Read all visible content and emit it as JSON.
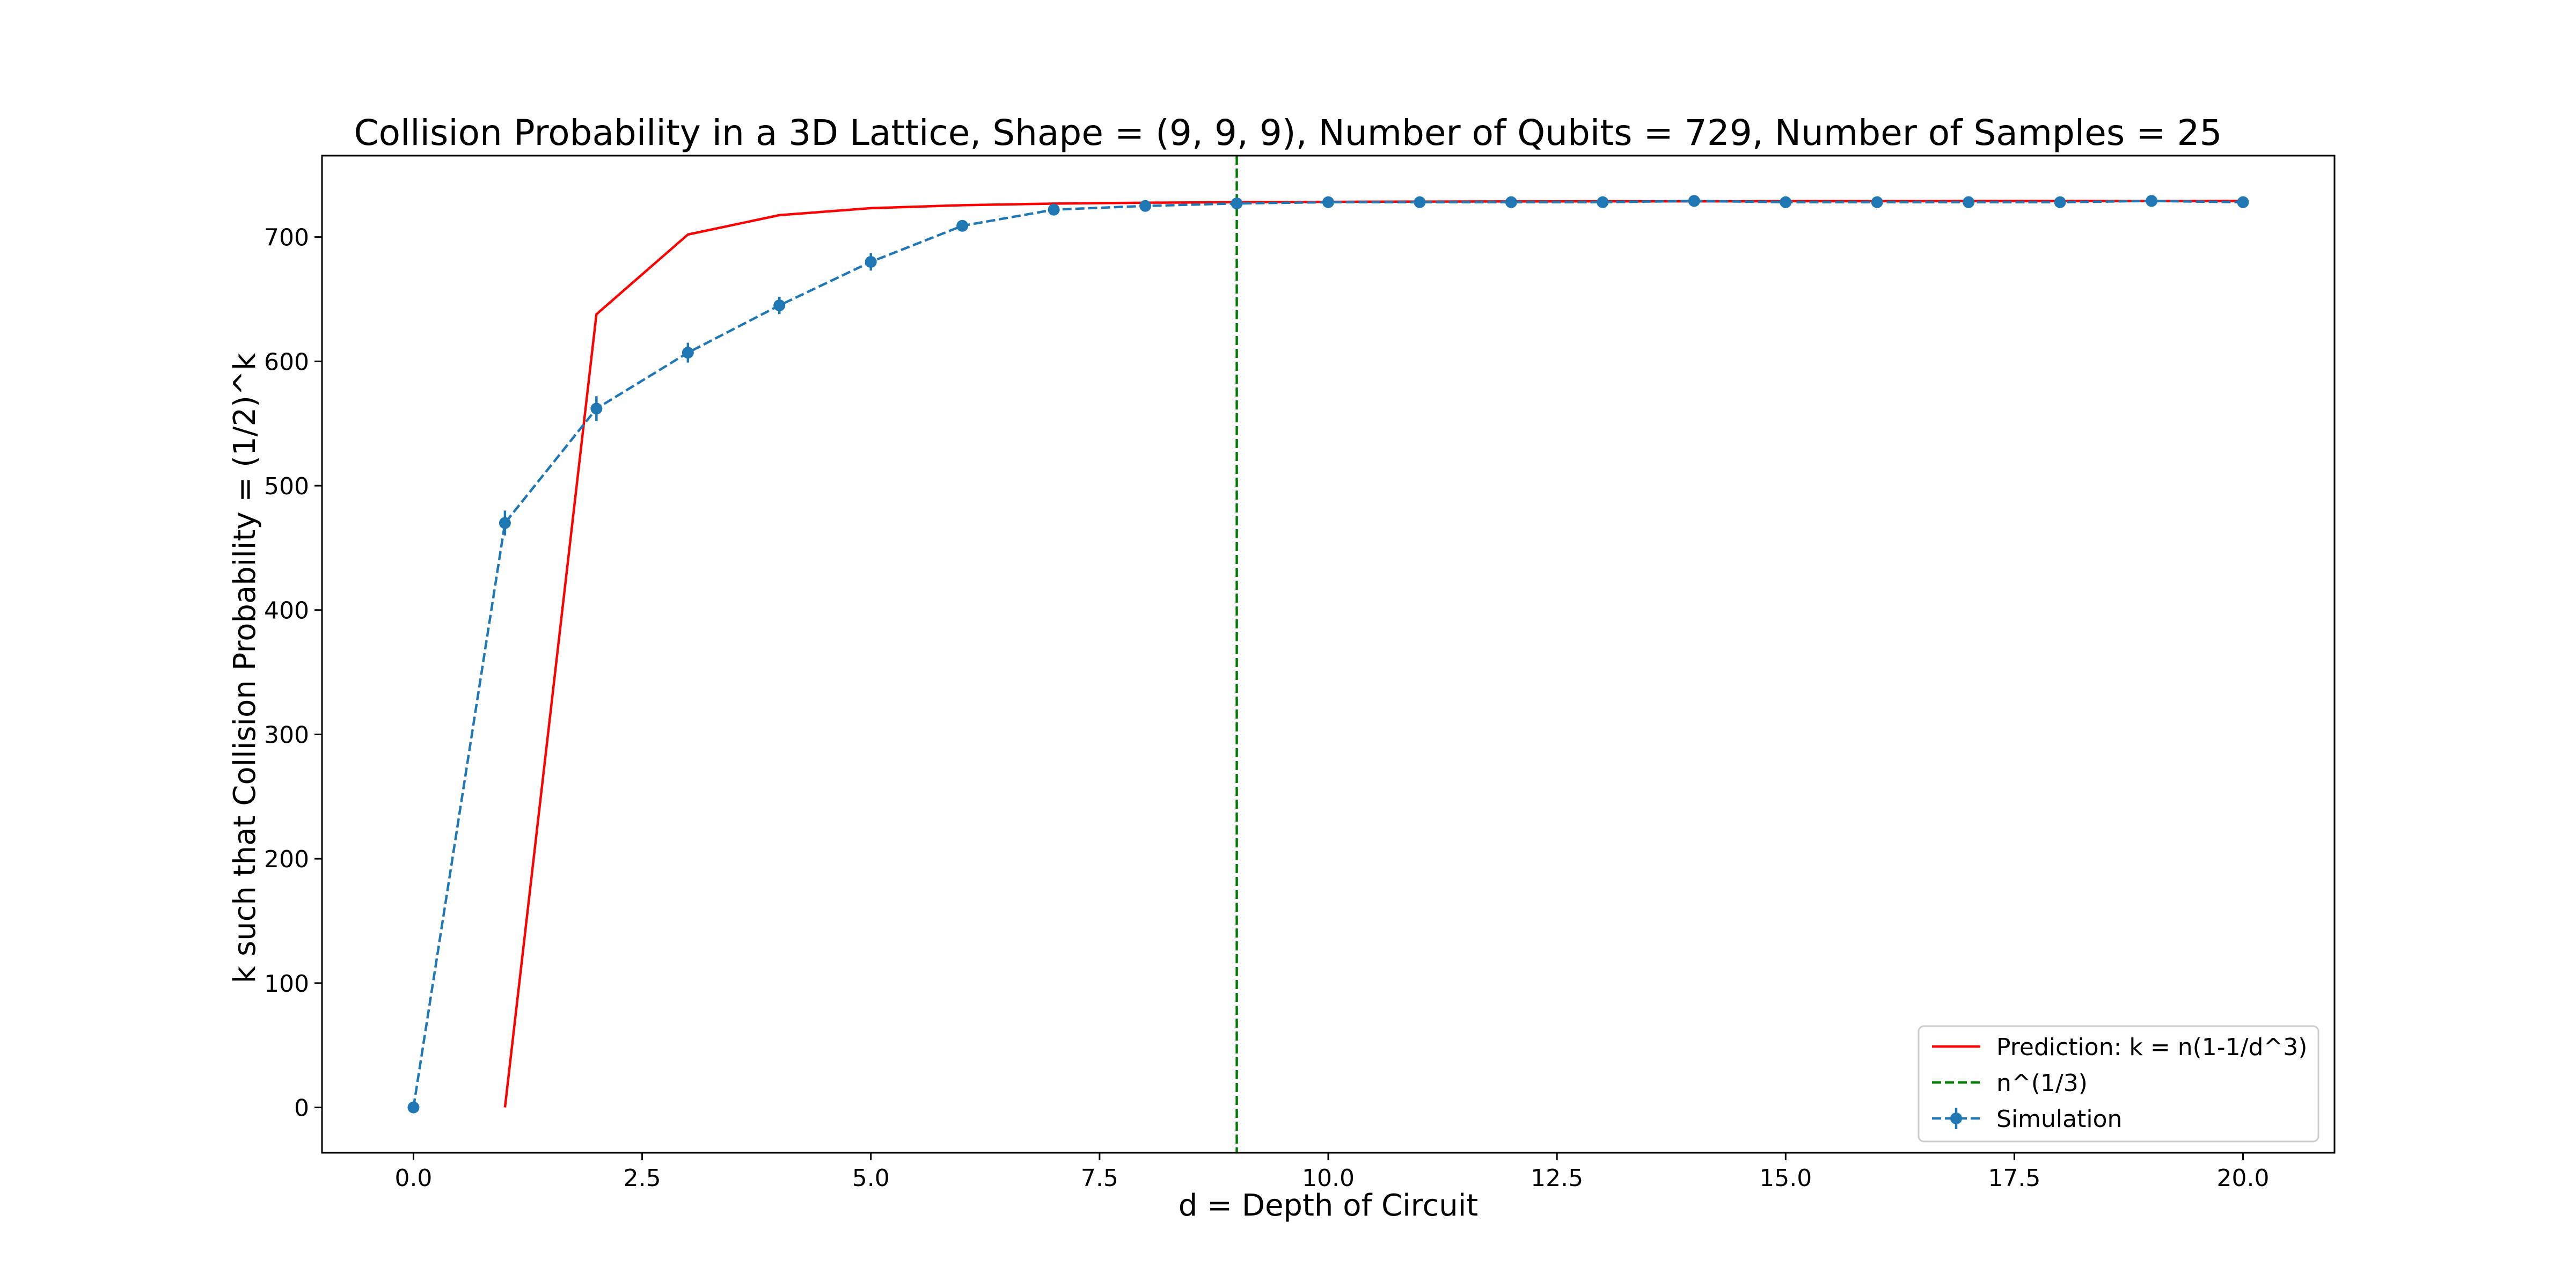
{
  "chart_data": {
    "type": "line",
    "title": "Collision Probability in a 3D Lattice, Shape = (9, 9, 9), Number of Qubits = 729, Number of Samples = 25",
    "xlabel": "d = Depth of Circuit",
    "ylabel": "k such that Collision Probability = (1/2)^k",
    "xlim": [
      -1.0,
      21.0
    ],
    "ylim": [
      -36.45,
      765.45
    ],
    "grid": false,
    "legend_position": "lower-right",
    "x_ticks": [
      0.0,
      2.5,
      5.0,
      7.5,
      10.0,
      12.5,
      15.0,
      17.5,
      20.0
    ],
    "x_tick_labels": [
      "0.0",
      "2.5",
      "5.0",
      "7.5",
      "10.0",
      "12.5",
      "15.0",
      "17.5",
      "20.0"
    ],
    "y_ticks": [
      0,
      100,
      200,
      300,
      400,
      500,
      600,
      700
    ],
    "y_tick_labels": [
      "0",
      "100",
      "200",
      "300",
      "400",
      "500",
      "600",
      "700"
    ],
    "series": [
      {
        "name": "Prediction: k = n(1-1/d^3)",
        "style": "solid",
        "color": "#ff0000",
        "x": [
          1,
          2,
          3,
          4,
          5,
          6,
          7,
          8,
          9,
          10,
          11,
          12,
          13,
          14,
          15,
          16,
          17,
          18,
          19,
          20
        ],
        "y": [
          0,
          637.9,
          702.0,
          717.6,
          723.2,
          725.6,
          726.9,
          727.6,
          728.0,
          728.3,
          728.5,
          728.6,
          728.7,
          728.7,
          728.8,
          728.8,
          728.9,
          728.9,
          728.9,
          728.9
        ]
      },
      {
        "name": "n^(1/3)",
        "style": "dashed",
        "color": "#008000",
        "vertical_x": 9
      },
      {
        "name": "Simulation",
        "style": "dashed-markers",
        "color": "#1f77b4",
        "x": [
          0,
          1,
          2,
          3,
          4,
          5,
          6,
          7,
          8,
          9,
          10,
          11,
          12,
          13,
          14,
          15,
          16,
          17,
          18,
          19,
          20
        ],
        "y": [
          0,
          470,
          562,
          607,
          645,
          680,
          709,
          722,
          725,
          727,
          728,
          728,
          728,
          728,
          729,
          728,
          728,
          728,
          728,
          729,
          728
        ],
        "yerr": [
          0,
          10,
          10,
          8,
          7,
          7,
          3,
          2,
          1,
          1,
          1,
          1,
          1,
          1,
          1,
          1,
          1,
          1,
          1,
          1,
          1
        ]
      }
    ]
  }
}
